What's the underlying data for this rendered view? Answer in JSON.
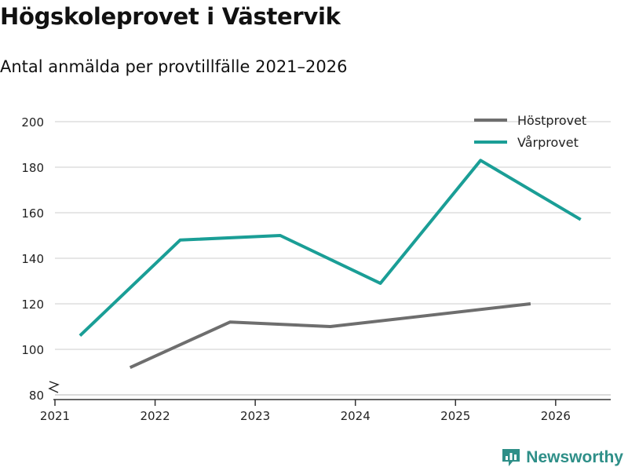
{
  "chart_data": {
    "type": "line",
    "title": "Högskoleprovet i Västervik",
    "subtitle": "Antal anmälda per provtillfälle 2021–2026",
    "x_ticks": [
      "2021",
      "2022",
      "2023",
      "2024",
      "2025",
      "2026"
    ],
    "y_ticks": [
      "80",
      "100",
      "120",
      "140",
      "160",
      "180",
      "200"
    ],
    "ylim": [
      80,
      200
    ],
    "xlim": [
      2021,
      2026.55
    ],
    "y_axis_break": true,
    "grid": "horizontal",
    "legend_position": "top-right",
    "series": [
      {
        "name": "Höstprovet",
        "color": "#6e6e6e",
        "points": [
          {
            "x": 2021.75,
            "y": 92
          },
          {
            "x": 2022.75,
            "y": 112
          },
          {
            "x": 2023.75,
            "y": 110
          },
          {
            "x": 2025.75,
            "y": 120
          }
        ]
      },
      {
        "name": "Vårprovet",
        "color": "#1a9e96",
        "points": [
          {
            "x": 2021.25,
            "y": 106
          },
          {
            "x": 2022.25,
            "y": 148
          },
          {
            "x": 2023.25,
            "y": 150
          },
          {
            "x": 2024.25,
            "y": 129
          },
          {
            "x": 2025.25,
            "y": 183
          },
          {
            "x": 2026.25,
            "y": 157
          }
        ]
      }
    ]
  },
  "brand": {
    "name": "Newsworthy",
    "icon": "newsworthy-logo-icon",
    "color": "#2e8f88"
  }
}
